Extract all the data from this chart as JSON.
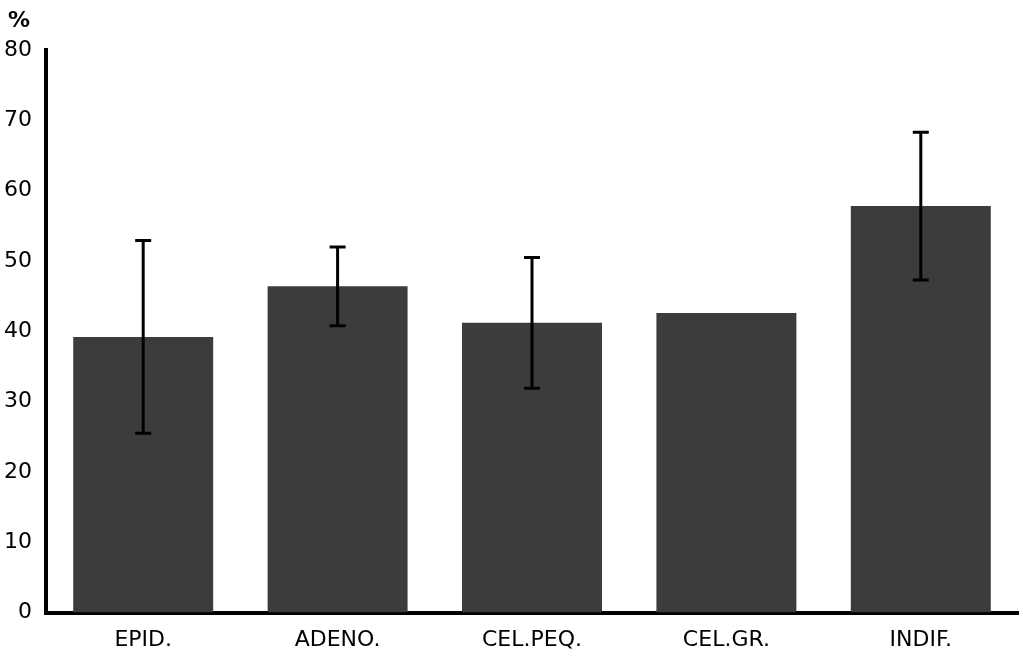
{
  "chart_data": {
    "type": "bar",
    "ylabel": "%",
    "categories": [
      "EPID.",
      "ADENO.",
      "CEL.PEQ.",
      "CEL.GR.",
      "INDIF."
    ],
    "values": [
      39.2,
      46.4,
      41.2,
      42.6,
      57.8
    ],
    "errors": [
      13.7,
      5.6,
      9.3,
      null,
      10.5
    ],
    "color": "#3c3c3c",
    "ylim": [
      0,
      80
    ],
    "yticks": [
      0,
      10,
      20,
      30,
      40,
      50,
      60,
      70,
      80
    ],
    "grid": false
  }
}
